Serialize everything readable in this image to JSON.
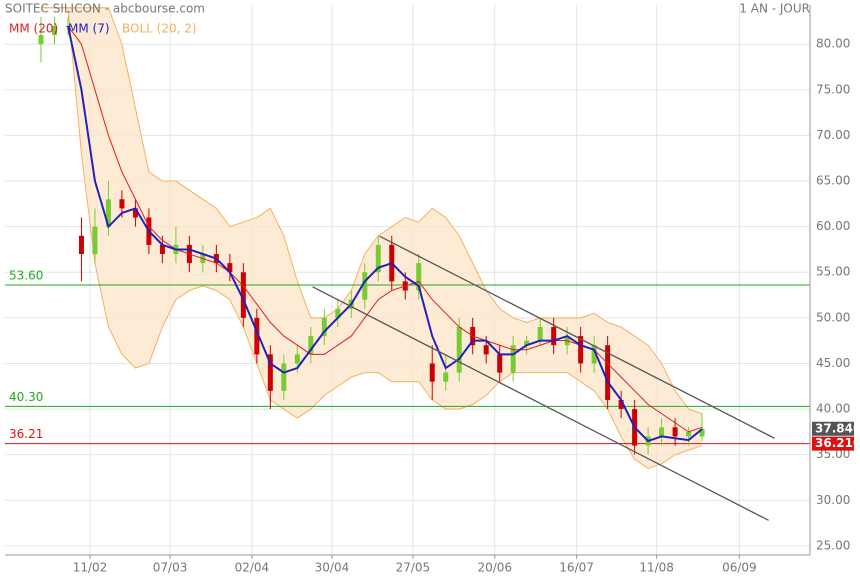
{
  "chart_data": {
    "type": "candlestick",
    "title": "SOITEC SILICON - abcbourse.com",
    "period": "1 AN - JOUR",
    "x": [
      8,
      11,
      14,
      17,
      20,
      23,
      26,
      29,
      32,
      35,
      38,
      41,
      44,
      47,
      50,
      53,
      56,
      59,
      62,
      65,
      68,
      71,
      74,
      77,
      80,
      83,
      86,
      89,
      92,
      95,
      98,
      101,
      104,
      107,
      110,
      113,
      116,
      119,
      122,
      125,
      128,
      131,
      134,
      137,
      140,
      143,
      146,
      149,
      152,
      155
    ],
    "open": [
      80,
      81,
      82,
      59,
      57,
      60,
      63,
      62,
      61,
      58,
      57,
      58,
      56,
      57,
      56,
      55,
      50,
      46,
      42,
      45,
      46,
      48,
      50,
      51,
      52,
      55,
      58,
      54,
      53,
      45,
      43,
      44,
      49,
      47,
      46,
      44,
      47,
      47.5,
      49,
      47,
      48,
      45,
      47,
      41,
      40,
      36,
      37,
      38,
      37,
      37
    ],
    "high": [
      83,
      83,
      83,
      61,
      62,
      65,
      64,
      63,
      62,
      59,
      60,
      59,
      58,
      58,
      57,
      56,
      51,
      47,
      46,
      47,
      49,
      51,
      52,
      53,
      56,
      59,
      59,
      55,
      57,
      47,
      46,
      50,
      50,
      48,
      47,
      48,
      48,
      50,
      50,
      49,
      49,
      48,
      48,
      42,
      41,
      38,
      39,
      39,
      38,
      39.5
    ],
    "low": [
      78,
      80,
      81,
      54,
      56,
      59,
      61,
      60,
      57,
      56,
      56,
      55,
      55,
      55,
      54,
      49,
      45,
      40,
      41,
      44,
      45,
      47,
      49,
      50,
      51,
      54,
      53,
      52,
      52,
      41,
      42,
      43,
      46,
      45,
      43,
      43,
      46,
      47,
      46,
      46,
      44,
      44,
      40,
      39,
      35,
      35,
      36,
      36,
      36,
      36.5
    ],
    "close": [
      81,
      82,
      82,
      57,
      60,
      63,
      62,
      61,
      58,
      57,
      58,
      56,
      57,
      56,
      55,
      50,
      46,
      42,
      45,
      46,
      48,
      50,
      51,
      52,
      55,
      58,
      54,
      53,
      56,
      43,
      44,
      49,
      47,
      46,
      44,
      47,
      47.5,
      49,
      47,
      48,
      45,
      47,
      41,
      40,
      36,
      37,
      38,
      37,
      37.5,
      37.84
    ],
    "up_color": "#77cc33",
    "down_color": "#cc0000",
    "series": [
      {
        "name": "MM (20)",
        "color": "#e02020",
        "values": [
          null,
          null,
          82,
          80,
          75,
          70,
          66,
          63,
          60,
          58.5,
          57.5,
          57,
          56.5,
          56,
          55,
          53.5,
          51.5,
          49.5,
          48,
          47,
          46,
          46,
          47,
          48,
          50,
          52,
          53,
          53.5,
          54,
          52,
          50.5,
          49,
          48,
          47.5,
          47,
          46.5,
          46.5,
          47,
          47.5,
          47.5,
          47,
          46.5,
          45,
          43.5,
          42,
          40.5,
          39.5,
          38.5,
          37.5,
          38
        ]
      },
      {
        "name": "MM (7)",
        "color": "#2222bb",
        "values": [
          null,
          null,
          82,
          75,
          65,
          60,
          61.5,
          62,
          59.5,
          58,
          57.5,
          57.5,
          57,
          56.5,
          55,
          52,
          48.5,
          45,
          44,
          44.5,
          46.5,
          48.5,
          50,
          51.5,
          54,
          55.5,
          56,
          54.5,
          53.5,
          48,
          44.5,
          45.5,
          47.5,
          47.5,
          46,
          46,
          47,
          47.5,
          47.5,
          48,
          47,
          46.5,
          43,
          41,
          38,
          36.5,
          37,
          36.8,
          36.6,
          37.8
        ]
      }
    ],
    "bollinger": {
      "name": "BOLL (20, 2)",
      "color": "#f5b060",
      "fill": "#fde6cc",
      "upper": [
        84,
        84,
        84,
        84,
        84,
        84,
        80,
        73,
        66,
        65,
        65,
        64,
        63,
        62,
        60,
        60.5,
        61,
        62,
        59,
        54,
        50,
        50,
        51,
        53,
        57,
        59,
        60,
        61,
        60.5,
        62,
        61,
        59,
        56,
        53,
        51,
        50,
        49.5,
        50,
        50,
        50,
        50,
        50.5,
        49.5,
        49,
        48,
        47,
        45,
        42,
        40,
        39.5
      ],
      "lower": [
        84,
        84,
        84,
        68,
        56,
        49,
        46,
        44.5,
        45,
        49,
        52,
        53,
        53.5,
        53,
        52,
        49,
        45,
        41,
        40,
        39,
        40,
        41.5,
        42.5,
        43.5,
        44,
        44,
        43,
        43,
        43,
        41,
        40,
        40,
        40.5,
        41.5,
        43,
        44,
        44,
        44,
        44,
        44,
        43,
        42,
        40,
        37,
        34.5,
        33.5,
        34,
        35,
        35.5,
        36
      ]
    },
    "levels": [
      {
        "value": 53.6,
        "label": "53.60",
        "color": "#22aa22"
      },
      {
        "value": 40.3,
        "label": "40.30",
        "color": "#22aa22"
      },
      {
        "value": 36.21,
        "label": "36.21",
        "box_label": "36.210",
        "color": "#dd1111"
      }
    ],
    "last": {
      "value": 37.84,
      "label": "37.840",
      "color": "#555555"
    },
    "trendlines": [
      {
        "x": [
          83.3,
          171.1
        ],
        "y": [
          58.95,
          36.8
        ],
        "color": "#555555"
      },
      {
        "x": [
          68.4,
          169.8
        ],
        "y": [
          53.4,
          27.8
        ],
        "color": "#555555"
      }
    ],
    "xlim": [
      0,
      179
    ],
    "ylim": [
      24,
      84.3
    ],
    "xticks": [
      {
        "value": 18.9,
        "label": "11/02"
      },
      {
        "value": 36.7,
        "label": "07/03"
      },
      {
        "value": 54.9,
        "label": "02/04"
      },
      {
        "value": 72.7,
        "label": "30/04"
      },
      {
        "value": 90.7,
        "label": "27/05"
      },
      {
        "value": 108.9,
        "label": "20/06"
      },
      {
        "value": 127.1,
        "label": "16/07"
      },
      {
        "value": 144.9,
        "label": "11/08"
      },
      {
        "value": 163.3,
        "label": "06/09"
      }
    ],
    "yticks": [
      {
        "value": 25,
        "label": "25.00"
      },
      {
        "value": 30,
        "label": "30.00"
      },
      {
        "value": 35,
        "label": "35.00"
      },
      {
        "value": 40,
        "label": "40.00"
      },
      {
        "value": 45,
        "label": "45.00"
      },
      {
        "value": 50,
        "label": "50.00"
      },
      {
        "value": 55,
        "label": "55.00"
      },
      {
        "value": 60,
        "label": "60.00"
      },
      {
        "value": 65,
        "label": "65.00"
      },
      {
        "value": 70,
        "label": "70.00"
      },
      {
        "value": 75,
        "label": "75.00"
      },
      {
        "value": 80,
        "label": "80.00"
      }
    ],
    "grid": true
  }
}
